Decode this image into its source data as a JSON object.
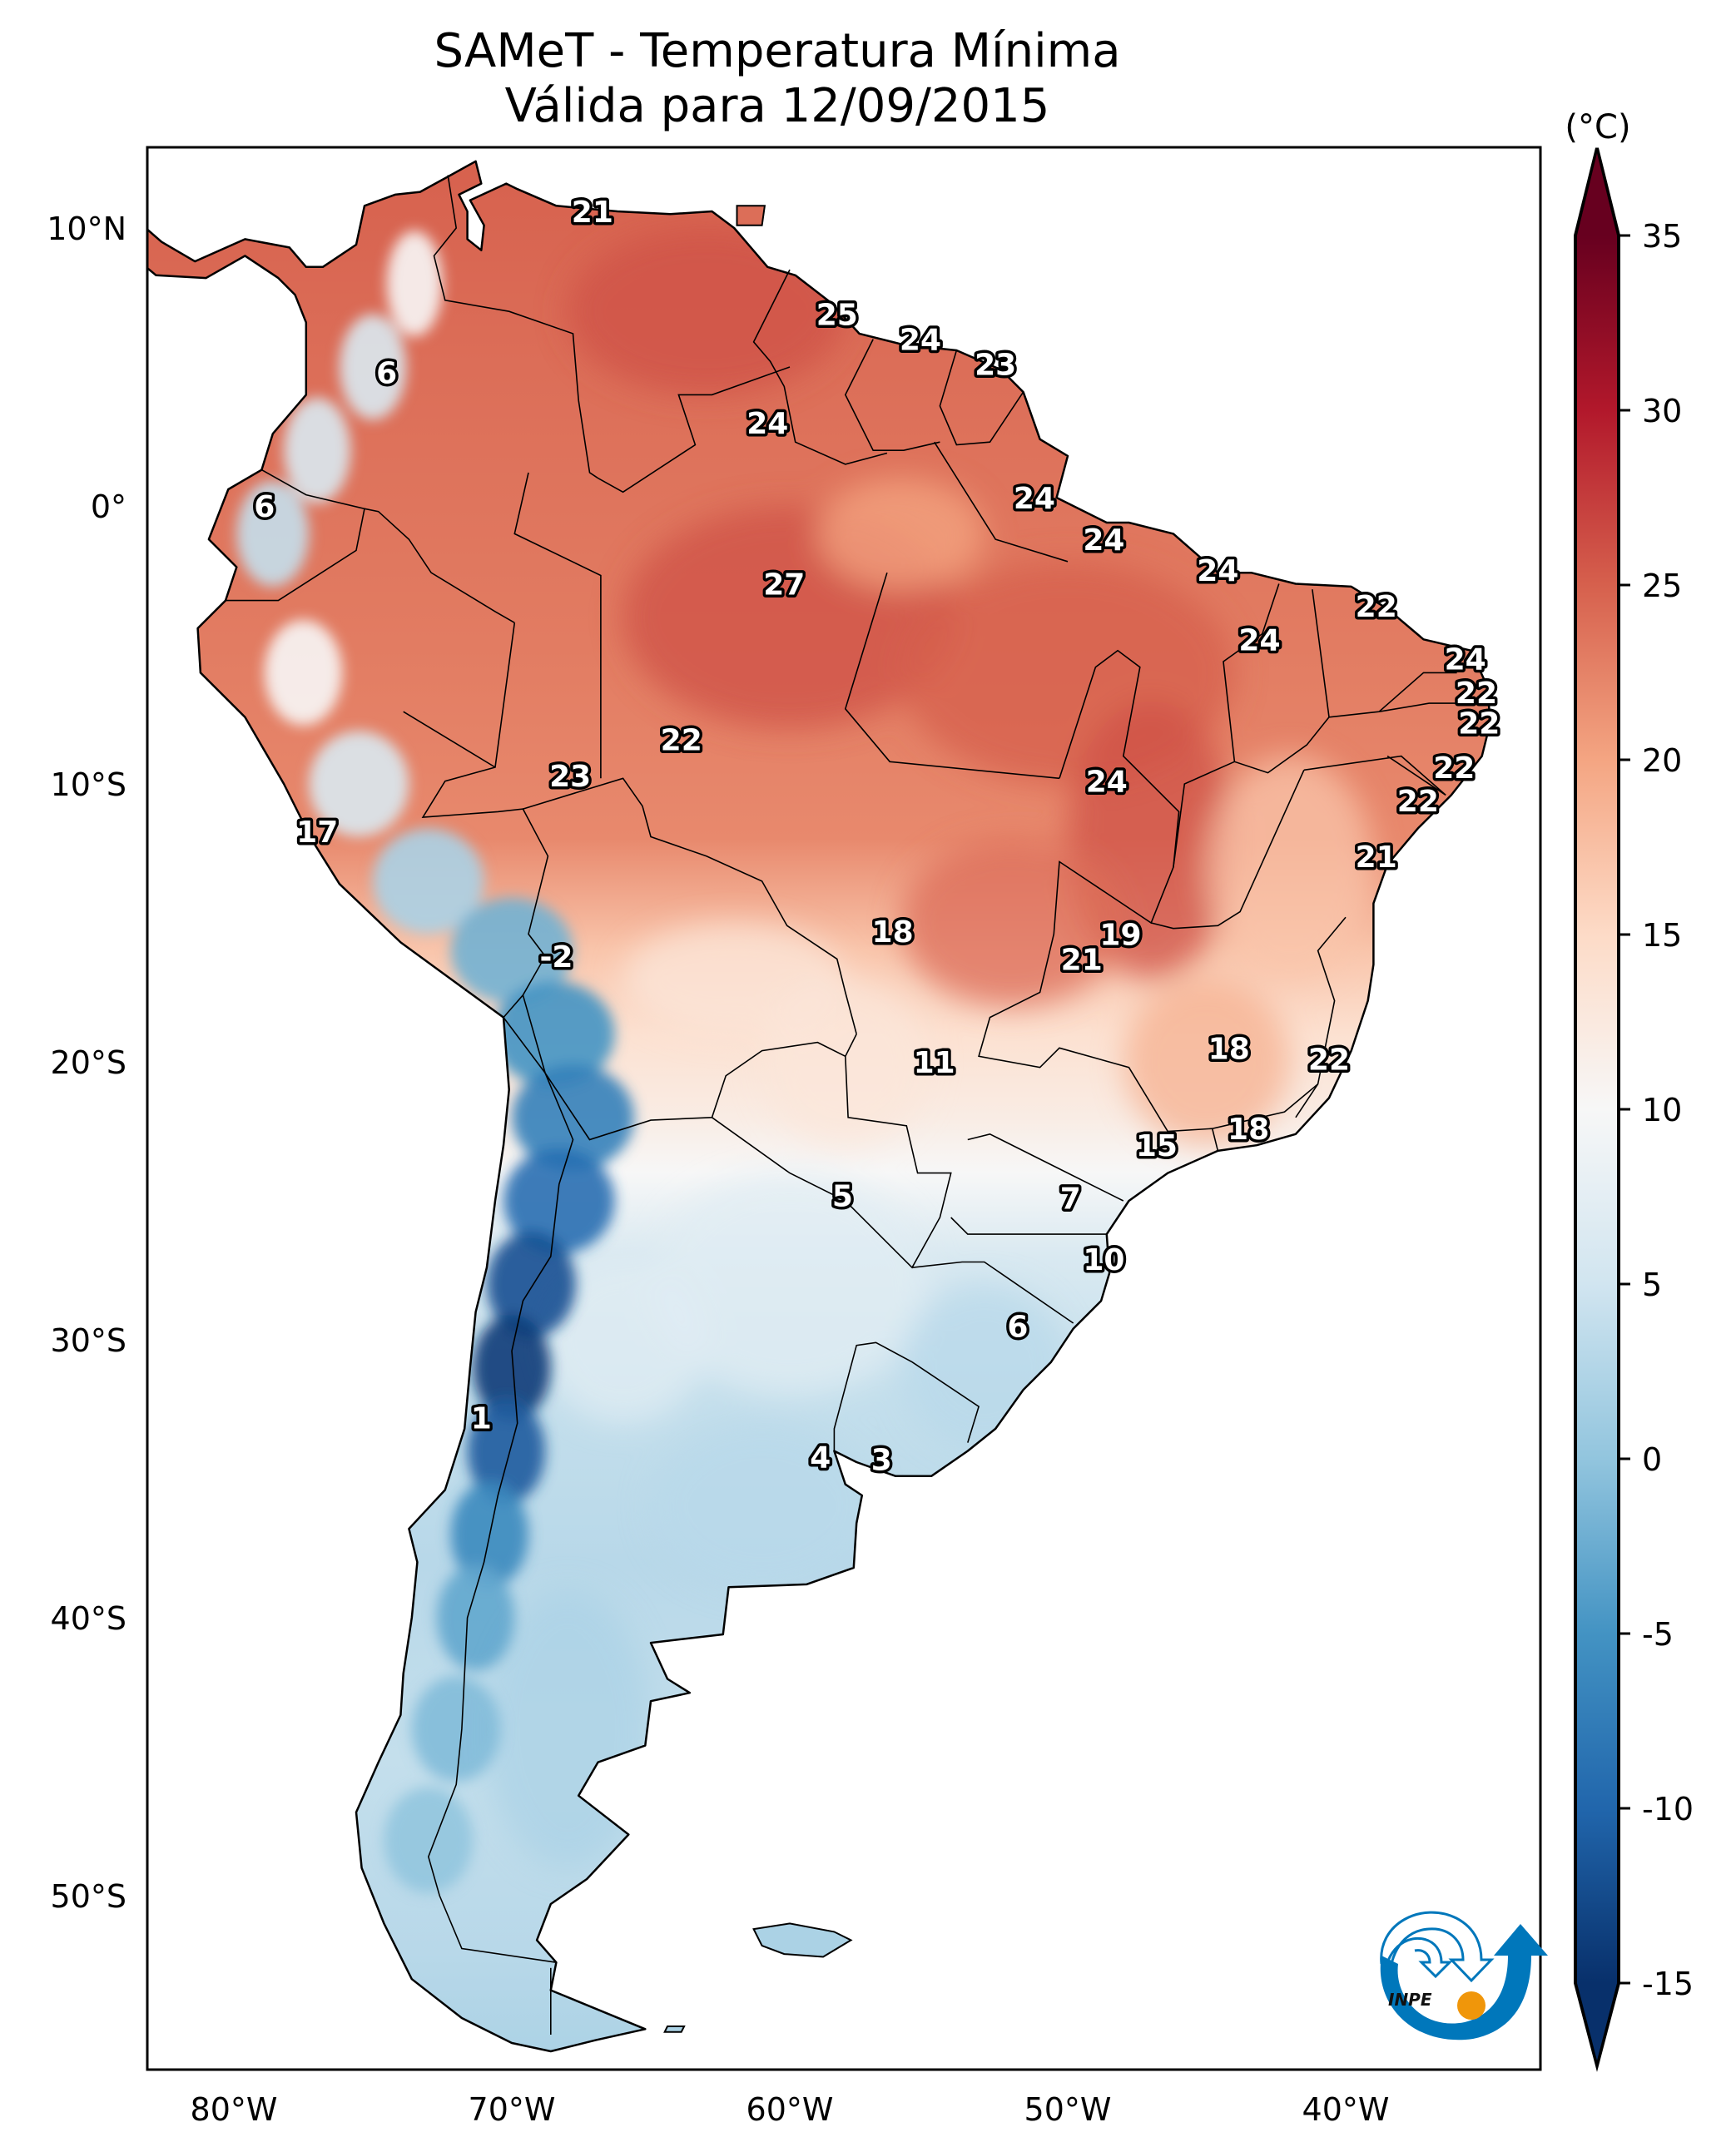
{
  "title": {
    "line1": "SAMeT - Temperatura Mínima",
    "line2": "Válida para 12/09/2015"
  },
  "chart_data": {
    "type": "heatmap",
    "title": "SAMeT - Temperatura Mínima Válida para 12/09/2015",
    "variable": "Minimum temperature",
    "units": "(°C)",
    "region": "South America",
    "lon_range": [
      -83,
      -34
    ],
    "lat_range": [
      13,
      -56.5
    ],
    "x_ticks": [
      {
        "value": -80,
        "label": "80°W"
      },
      {
        "value": -70,
        "label": "70°W"
      },
      {
        "value": -60,
        "label": "60°W"
      },
      {
        "value": -50,
        "label": "50°W"
      },
      {
        "value": -40,
        "label": "40°W"
      }
    ],
    "y_ticks": [
      {
        "value": 10,
        "label": "10°N"
      },
      {
        "value": 0,
        "label": "0°"
      },
      {
        "value": -10,
        "label": "10°S"
      },
      {
        "value": -20,
        "label": "20°S"
      },
      {
        "value": -30,
        "label": "30°S"
      },
      {
        "value": -40,
        "label": "40°S"
      },
      {
        "value": -50,
        "label": "50°S"
      }
    ],
    "colorbar": {
      "unit": "(°C)",
      "min": -15,
      "max": 35,
      "extend": "both",
      "colormap": "RdBu_r",
      "ticks": [
        35,
        30,
        25,
        20,
        15,
        10,
        5,
        0,
        -5,
        -10,
        -15
      ],
      "tick_labels": [
        "35",
        "30",
        "25",
        "20",
        "15",
        "10",
        "5",
        "0",
        "-5",
        "-10",
        "-15"
      ],
      "stops": [
        {
          "value": -15,
          "color": "#08306b"
        },
        {
          "value": -10,
          "color": "#2166ac"
        },
        {
          "value": -5,
          "color": "#4393c3"
        },
        {
          "value": 0,
          "color": "#92c5de"
        },
        {
          "value": 5,
          "color": "#d1e5f0"
        },
        {
          "value": 10,
          "color": "#f7f7f7"
        },
        {
          "value": 15,
          "color": "#fddbc7"
        },
        {
          "value": 20,
          "color": "#f4a582"
        },
        {
          "value": 25,
          "color": "#d6604d"
        },
        {
          "value": 30,
          "color": "#b2182b"
        },
        {
          "value": 35,
          "color": "#67001f"
        }
      ]
    },
    "point_labels": [
      {
        "text": "21",
        "lon": -67.1,
        "lat": 10.6
      },
      {
        "text": "6",
        "lon": -74.5,
        "lat": 4.8
      },
      {
        "text": "6",
        "lon": -78.9,
        "lat": 0.0
      },
      {
        "text": "25",
        "lon": -58.3,
        "lat": 6.9
      },
      {
        "text": "24",
        "lon": -55.3,
        "lat": 6.0
      },
      {
        "text": "23",
        "lon": -52.6,
        "lat": 5.1
      },
      {
        "text": "24",
        "lon": -60.8,
        "lat": 3.0
      },
      {
        "text": "24",
        "lon": -51.2,
        "lat": 0.3
      },
      {
        "text": "27",
        "lon": -60.2,
        "lat": -2.8
      },
      {
        "text": "24",
        "lon": -48.7,
        "lat": -1.2
      },
      {
        "text": "24",
        "lon": -44.6,
        "lat": -2.3
      },
      {
        "text": "22",
        "lon": -38.9,
        "lat": -3.6
      },
      {
        "text": "24",
        "lon": -43.1,
        "lat": -4.8
      },
      {
        "text": "24",
        "lon": -35.7,
        "lat": -5.5
      },
      {
        "text": "22",
        "lon": -35.3,
        "lat": -6.7
      },
      {
        "text": "22",
        "lon": -35.2,
        "lat": -7.8
      },
      {
        "text": "22",
        "lon": -36.1,
        "lat": -9.4
      },
      {
        "text": "22",
        "lon": -37.4,
        "lat": -10.6
      },
      {
        "text": "21",
        "lon": -38.9,
        "lat": -12.6
      },
      {
        "text": "22",
        "lon": -63.9,
        "lat": -8.4
      },
      {
        "text": "23",
        "lon": -67.9,
        "lat": -9.7
      },
      {
        "text": "24",
        "lon": -48.6,
        "lat": -9.9
      },
      {
        "text": "17",
        "lon": -77.0,
        "lat": -11.7
      },
      {
        "text": "-2",
        "lon": -68.4,
        "lat": -16.2
      },
      {
        "text": "18",
        "lon": -56.3,
        "lat": -15.3
      },
      {
        "text": "19",
        "lon": -48.1,
        "lat": -15.4
      },
      {
        "text": "21",
        "lon": -49.5,
        "lat": -16.3
      },
      {
        "text": "11",
        "lon": -54.8,
        "lat": -20.0
      },
      {
        "text": "18",
        "lon": -44.2,
        "lat": -19.5
      },
      {
        "text": "22",
        "lon": -40.6,
        "lat": -19.9
      },
      {
        "text": "18",
        "lon": -43.5,
        "lat": -22.4
      },
      {
        "text": "15",
        "lon": -46.8,
        "lat": -23.0
      },
      {
        "text": "5",
        "lon": -58.1,
        "lat": -24.8
      },
      {
        "text": "7",
        "lon": -49.9,
        "lat": -24.9
      },
      {
        "text": "10",
        "lon": -48.7,
        "lat": -27.1
      },
      {
        "text": "6",
        "lon": -51.8,
        "lat": -29.5
      },
      {
        "text": "1",
        "lon": -71.1,
        "lat": -32.8
      },
      {
        "text": "4",
        "lon": -58.9,
        "lat": -34.2
      },
      {
        "text": "3",
        "lon": -56.7,
        "lat": -34.3
      }
    ]
  },
  "logo": {
    "text": "INPE",
    "colors": {
      "blue": "#0077bb",
      "orange": "#f0960a"
    }
  }
}
